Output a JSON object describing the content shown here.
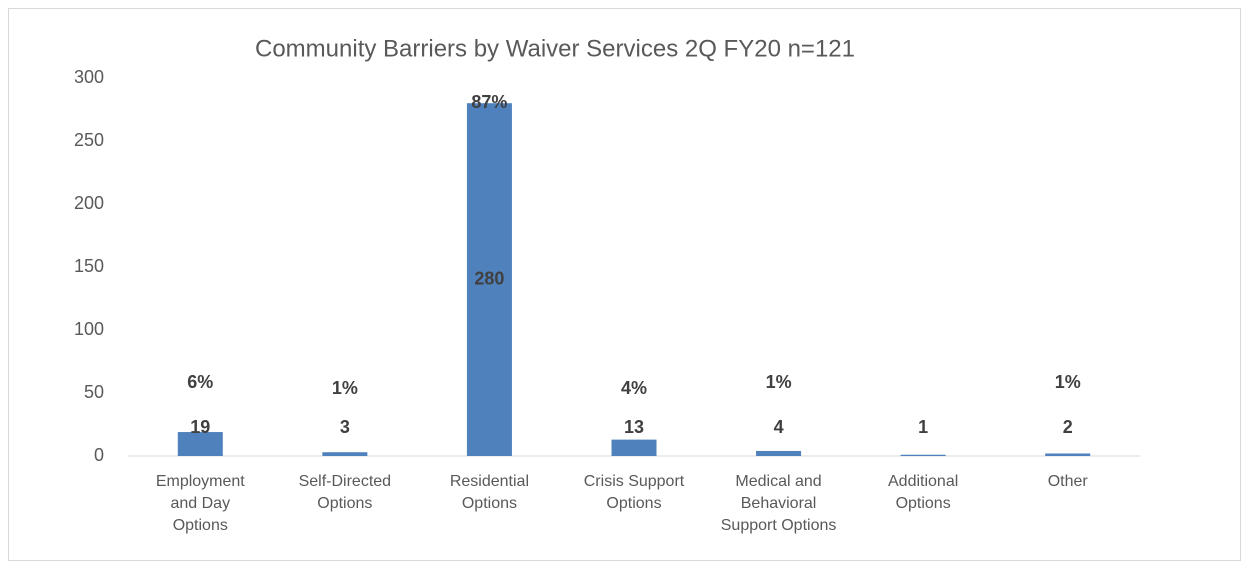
{
  "chart_data": {
    "type": "bar",
    "title": "Community Barriers by Waiver Services  2Q  FY20 n=121",
    "categories": [
      "Employment and Day Options",
      "Self-Directed Options",
      "Residential Options",
      "Crisis Support Options",
      "Medical and Behavioral Support Options",
      "Additional Options",
      "Other"
    ],
    "values": [
      19,
      3,
      280,
      13,
      4,
      1,
      2
    ],
    "percent_labels": [
      "6%",
      "1%",
      "87%",
      "4%",
      "1%",
      null,
      "1%"
    ],
    "color": "#4f81bd",
    "ylim": [
      0,
      300
    ],
    "yticks": [
      0,
      50,
      100,
      150,
      200,
      250,
      300
    ],
    "grid": false
  }
}
